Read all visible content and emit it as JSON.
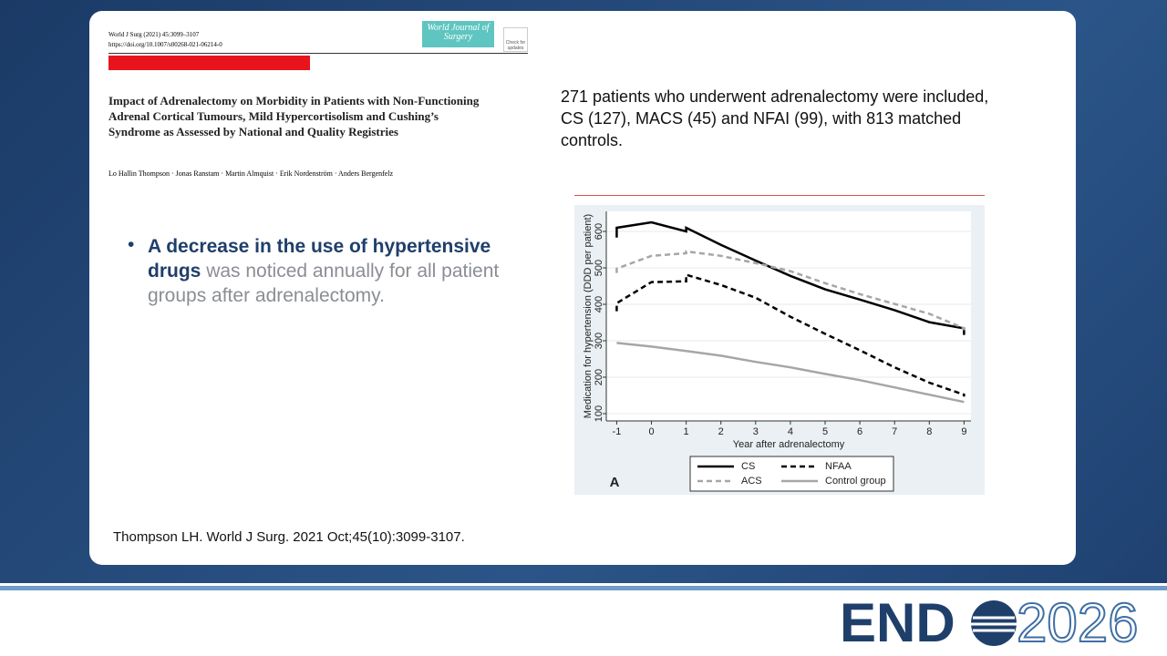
{
  "paper": {
    "journal_line": "World J Surg (2021) 45:3099–3107",
    "doi": "https://doi.org/10.1007/s00268-021-06214-0",
    "journal_badge": "World Journal of Surgery",
    "check_badge": "Check for updates",
    "title": "Impact of Adrenalectomy on Morbidity in Patients with Non-Functioning Adrenal Cortical Tumours, Mild Hypercortisolism and Cushing’s Syndrome as Assessed by National and Quality Registries",
    "authors": "Lo Hallin Thompson · Jonas Ranstam · Martin Almquist · Erik Nordenström · Anders Bergenfelz"
  },
  "bullet": {
    "bold": "A decrease in the use of hypertensive drugs",
    "rest": "was noticed annually for all patient groups after adrenalectomy."
  },
  "summary": "271 patients who underwent adrenalectomy were included, CS (127), MACS (45) and NFAI  (99), with 813 matched controls.",
  "citation": "Thompson LH. World J Surg. 2021 Oct;45(10):3099-3107.",
  "logo": {
    "left": "END",
    "right": "2026"
  },
  "chart_data": {
    "type": "line",
    "panel_label": "A",
    "x_label": "Year after adrenalectomy",
    "y_label": "Medication for hypertension (DDD per patient)",
    "x": [
      -1,
      -1,
      0,
      1,
      1,
      2,
      3,
      4,
      5,
      6,
      7,
      8,
      9,
      9
    ],
    "series": [
      {
        "name": "CS",
        "color": "#000000",
        "style": "solid",
        "values": [
          583,
          610,
          625,
          600,
          610,
          563,
          520,
          478,
          441,
          413,
          384,
          351,
          334,
          316
        ]
      },
      {
        "name": "NFAA",
        "color": "#000000",
        "style": "dashed",
        "values": [
          381,
          403,
          461,
          463,
          481,
          453,
          418,
          366,
          319,
          274,
          227,
          185,
          152,
          147
        ]
      },
      {
        "name": "ACS",
        "color": "#a6a6a6",
        "style": "dashed",
        "values": [
          486,
          498,
          533,
          540,
          545,
          533,
          513,
          491,
          458,
          428,
          401,
          374,
          334,
          329
        ]
      },
      {
        "name": "Control group",
        "color": "#a6a6a6",
        "style": "solid",
        "values": [
          294,
          294,
          284,
          272,
          272,
          259,
          242,
          227,
          209,
          192,
          172,
          152,
          132,
          132
        ]
      }
    ],
    "xlim": [
      -1.3,
      9.2
    ],
    "ylim": [
      80,
      655
    ],
    "xticks": [
      -1,
      0,
      1,
      2,
      3,
      4,
      5,
      6,
      7,
      8,
      9
    ],
    "yticks": [
      100,
      200,
      300,
      400,
      500,
      600
    ],
    "grid": true
  }
}
